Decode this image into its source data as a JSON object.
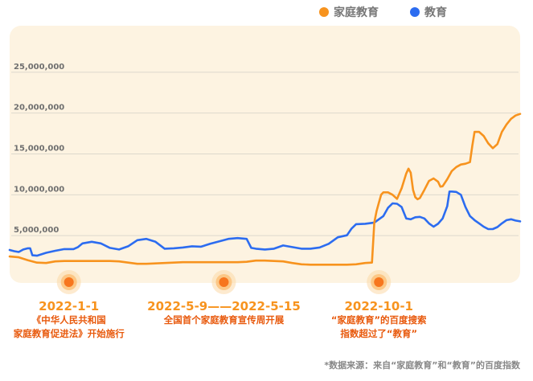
{
  "chart_data": {
    "type": "line",
    "colors": {
      "series_1": "#f7931e",
      "series_2": "#2c6cf0",
      "background": "#fdf3e1",
      "accent": "#e8590c"
    },
    "series": [
      {
        "name": "家庭教育",
        "values": [
          [
            0,
            2450000
          ],
          [
            4,
            2350000
          ],
          [
            8,
            2000000
          ],
          [
            12,
            1700000
          ],
          [
            16,
            1650000
          ],
          [
            20,
            1850000
          ],
          [
            24,
            1900000
          ],
          [
            28,
            1900000
          ],
          [
            32,
            1900000
          ],
          [
            36,
            1900000
          ],
          [
            40,
            1900000
          ],
          [
            44,
            1900000
          ],
          [
            48,
            1850000
          ],
          [
            52,
            1700000
          ],
          [
            56,
            1550000
          ],
          [
            60,
            1550000
          ],
          [
            64,
            1600000
          ],
          [
            68,
            1650000
          ],
          [
            72,
            1700000
          ],
          [
            76,
            1750000
          ],
          [
            80,
            1750000
          ],
          [
            84,
            1750000
          ],
          [
            88,
            1750000
          ],
          [
            92,
            1750000
          ],
          [
            96,
            1750000
          ],
          [
            100,
            1750000
          ],
          [
            104,
            1800000
          ],
          [
            108,
            1950000
          ],
          [
            112,
            1950000
          ],
          [
            116,
            1900000
          ],
          [
            120,
            1850000
          ],
          [
            124,
            1650000
          ],
          [
            128,
            1500000
          ],
          [
            132,
            1450000
          ],
          [
            136,
            1450000
          ],
          [
            140,
            1450000
          ],
          [
            144,
            1450000
          ],
          [
            148,
            1450000
          ],
          [
            152,
            1500000
          ],
          [
            156,
            1650000
          ],
          [
            159,
            1700000
          ],
          [
            160,
            6600000
          ],
          [
            161,
            8000000
          ],
          [
            162,
            9000000
          ],
          [
            163,
            10000000
          ],
          [
            164,
            10300000
          ],
          [
            166,
            10300000
          ],
          [
            168,
            10000000
          ],
          [
            170,
            9500000
          ],
          [
            172,
            10800000
          ],
          [
            174,
            12600000
          ],
          [
            175,
            13200000
          ],
          [
            176,
            12700000
          ],
          [
            177,
            10600000
          ],
          [
            178,
            9700000
          ],
          [
            179,
            9450000
          ],
          [
            180,
            9600000
          ],
          [
            182,
            10600000
          ],
          [
            184,
            11700000
          ],
          [
            186,
            12000000
          ],
          [
            188,
            11600000
          ],
          [
            189,
            11000000
          ],
          [
            190,
            11050000
          ],
          [
            192,
            11900000
          ],
          [
            194,
            12900000
          ],
          [
            196,
            13400000
          ],
          [
            198,
            13700000
          ],
          [
            200,
            13800000
          ],
          [
            202,
            14000000
          ],
          [
            203,
            16000000
          ],
          [
            204,
            17700000
          ],
          [
            206,
            17700000
          ],
          [
            208,
            17200000
          ],
          [
            210,
            16300000
          ],
          [
            212,
            15700000
          ],
          [
            214,
            16200000
          ],
          [
            216,
            17700000
          ],
          [
            218,
            18600000
          ],
          [
            220,
            19300000
          ],
          [
            222,
            19700000
          ],
          [
            224,
            19900000
          ]
        ]
      },
      {
        "name": "教育",
        "values": [
          [
            0,
            3250000
          ],
          [
            2,
            3100000
          ],
          [
            4,
            3000000
          ],
          [
            6,
            3300000
          ],
          [
            8,
            3450000
          ],
          [
            9,
            3450000
          ],
          [
            10,
            2600000
          ],
          [
            12,
            2550000
          ],
          [
            16,
            2900000
          ],
          [
            20,
            3150000
          ],
          [
            24,
            3350000
          ],
          [
            28,
            3350000
          ],
          [
            30,
            3600000
          ],
          [
            32,
            4050000
          ],
          [
            36,
            4250000
          ],
          [
            40,
            4050000
          ],
          [
            44,
            3500000
          ],
          [
            48,
            3300000
          ],
          [
            52,
            3700000
          ],
          [
            56,
            4450000
          ],
          [
            60,
            4600000
          ],
          [
            64,
            4250000
          ],
          [
            68,
            3400000
          ],
          [
            72,
            3450000
          ],
          [
            76,
            3550000
          ],
          [
            80,
            3700000
          ],
          [
            84,
            3650000
          ],
          [
            88,
            4000000
          ],
          [
            92,
            4300000
          ],
          [
            96,
            4600000
          ],
          [
            100,
            4700000
          ],
          [
            104,
            4600000
          ],
          [
            106,
            3500000
          ],
          [
            108,
            3400000
          ],
          [
            112,
            3300000
          ],
          [
            116,
            3400000
          ],
          [
            120,
            3800000
          ],
          [
            124,
            3600000
          ],
          [
            128,
            3400000
          ],
          [
            132,
            3400000
          ],
          [
            136,
            3550000
          ],
          [
            140,
            4000000
          ],
          [
            144,
            4800000
          ],
          [
            148,
            5050000
          ],
          [
            150,
            5850000
          ],
          [
            152,
            6400000
          ],
          [
            156,
            6450000
          ],
          [
            160,
            6600000
          ],
          [
            164,
            7400000
          ],
          [
            166,
            8400000
          ],
          [
            168,
            8950000
          ],
          [
            170,
            8900000
          ],
          [
            172,
            8500000
          ],
          [
            174,
            7100000
          ],
          [
            176,
            7000000
          ],
          [
            178,
            7250000
          ],
          [
            180,
            7300000
          ],
          [
            182,
            7100000
          ],
          [
            184,
            6500000
          ],
          [
            186,
            6100000
          ],
          [
            188,
            6450000
          ],
          [
            190,
            7100000
          ],
          [
            192,
            8600000
          ],
          [
            193,
            10400000
          ],
          [
            194,
            10400000
          ],
          [
            196,
            10350000
          ],
          [
            198,
            10000000
          ],
          [
            200,
            8500000
          ],
          [
            202,
            7400000
          ],
          [
            204,
            6900000
          ],
          [
            206,
            6500000
          ],
          [
            208,
            6100000
          ],
          [
            210,
            5800000
          ],
          [
            212,
            5800000
          ],
          [
            214,
            6050000
          ],
          [
            216,
            6500000
          ],
          [
            218,
            6900000
          ],
          [
            220,
            7000000
          ],
          [
            222,
            6850000
          ],
          [
            224,
            6750000
          ]
        ]
      }
    ],
    "xlim": [
      0,
      224
    ],
    "ylim": [
      0,
      30000000
    ],
    "y_ticks": [
      5000000,
      10000000,
      15000000,
      20000000,
      25000000
    ],
    "y_tick_labels": [
      "5,000,000",
      "10,000,000",
      "15,000,000",
      "20,000,000",
      "25,000,000"
    ],
    "grid": true,
    "legend_position": "top-right",
    "events": [
      {
        "x": 26,
        "date": "2022-1-1",
        "lines": [
          "《中华人民共和国",
          "家庭教育促进法》开始施行"
        ]
      },
      {
        "x": 94,
        "date": "2022-5-9——2022-5-15",
        "lines": [
          "全国首个家庭教育宣传周开展"
        ]
      },
      {
        "x": 162,
        "date": "2022-10-1",
        "lines": [
          "“家庭教育”的百度搜索",
          "指数超过了“教育”"
        ]
      }
    ],
    "footnote": "*数据来源：来自“家庭教育”和“教育”的百度指数"
  }
}
